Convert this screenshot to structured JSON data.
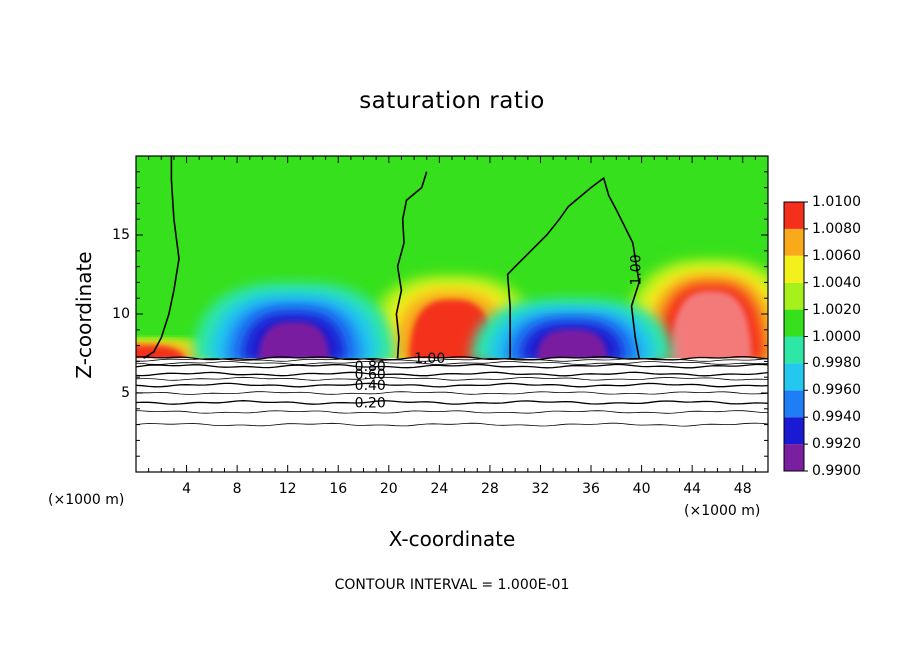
{
  "chart_data": {
    "type": "heatmap",
    "title": "saturation ratio",
    "xlabel": "X-coordinate",
    "ylabel": "Z-coordinate",
    "x_unit": "(×1000 m)",
    "y_unit": "(×1000 m)",
    "xlim": [
      0,
      50
    ],
    "ylim": [
      0,
      20
    ],
    "x_ticks": [
      4,
      8,
      12,
      16,
      20,
      24,
      28,
      32,
      36,
      40,
      44,
      48
    ],
    "y_ticks": [
      5,
      10,
      15
    ],
    "footer": "CONTOUR INTERVAL = 1.000E-01",
    "colorbar": {
      "levels": [
        0.99,
        0.992,
        0.994,
        0.996,
        0.998,
        1.0,
        1.002,
        1.004,
        1.006,
        1.008,
        1.01
      ],
      "labels": [
        "0.9900",
        "0.9920",
        "0.9940",
        "0.9960",
        "0.9980",
        "1.0000",
        "1.0020",
        "1.0040",
        "1.0060",
        "1.0080",
        "1.0100"
      ],
      "colors": [
        "#7a1fa0",
        "#1a1ad2",
        "#1e7ef5",
        "#24c8ef",
        "#2ee6a6",
        "#36e01c",
        "#a6f01c",
        "#f4f01c",
        "#f8aa1a",
        "#f4301c",
        "#f47a7a"
      ]
    },
    "cloud_base_height": 7.2,
    "contour_lines": [
      {
        "label": "0.20",
        "z": 4.4
      },
      {
        "label": "0.40",
        "z": 5.5
      },
      {
        "label": "0.60",
        "z": 6.2
      },
      {
        "label": "0.80",
        "z": 6.7
      },
      {
        "label": "1.00",
        "z": 7.2
      }
    ],
    "unlabeled_contour_z": [
      3.0,
      3.8,
      5.0,
      5.9,
      6.9,
      7.1
    ],
    "boundary_contour_label": "1.00",
    "updrafts": [
      {
        "x": 0.5,
        "z_top": 8.5,
        "max": 1.008
      },
      {
        "x": 25.0,
        "z_top": 13.0,
        "max": 1.008
      },
      {
        "x": 45.5,
        "z_top": 14.0,
        "max": 1.01
      }
    ],
    "downdrafts": [
      {
        "x": 12.5,
        "z_top": 12.0,
        "min": 0.99
      },
      {
        "x": 34.5,
        "z_top": 11.0,
        "min": 0.99
      }
    ],
    "background_value": 1.0
  }
}
